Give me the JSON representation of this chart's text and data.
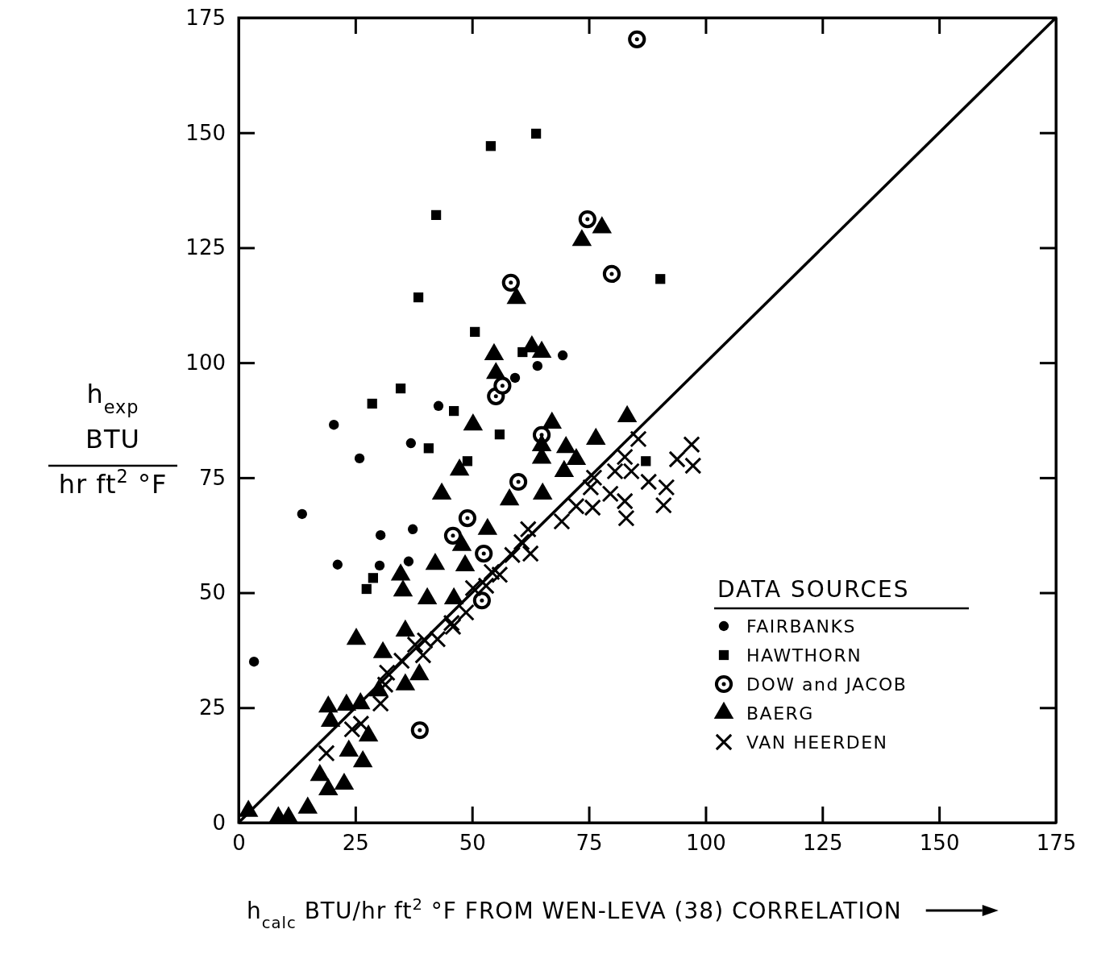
{
  "chart_data": {
    "type": "scatter",
    "xlabel": "h$_{calc}$ BTU/hr ft$^{2}$ °F   FROM WEN-LEVA (38) CORRELATION",
    "ylabel": "h$_{exp}$\nBTU\nhr ft$^{2}$ °F",
    "legend_title": "DATA SOURCES",
    "legend": "bottom right",
    "grid": false,
    "tick_labels": "xy",
    "xlim": [
      0,
      175
    ],
    "ylim": [
      0,
      175
    ],
    "xticks": [
      0,
      25,
      50,
      75,
      100,
      125,
      150,
      175
    ],
    "yticks": [
      0,
      25,
      50,
      75,
      100,
      125,
      150,
      175
    ],
    "series": [
      {
        "name": "FAIRBANKS",
        "color": "#000000",
        "marker": "circle",
        "x": [
          3.3,
          20.4,
          25.9,
          13.6,
          21.2,
          30.4,
          30.2,
          36.4,
          37.3,
          36.9,
          42.8,
          59.2,
          64,
          69.4
        ],
        "values": [
          35,
          86.5,
          79.2,
          67.1,
          56.1,
          62.5,
          55.9,
          56.8,
          63.8,
          82.5,
          90.6,
          96.7,
          99.3,
          101.6
        ]
      },
      {
        "name": "HAWTHORN",
        "color": "#000000",
        "marker": "square",
        "x": [
          63.7,
          54,
          42.3,
          38.5,
          90.3,
          50.6,
          34.7,
          28.6,
          46.1,
          40.7,
          49,
          55.9,
          28.8,
          27.4,
          87.2,
          60.8
        ],
        "values": [
          149.8,
          147.1,
          132.1,
          114.2,
          118.2,
          106.7,
          94.4,
          91.1,
          89.5,
          81.4,
          78.6,
          84.4,
          53.2,
          50.8,
          78.6,
          102.3
        ]
      },
      {
        "name": "DOW and JACOB",
        "color": "#000000",
        "marker": "circle",
        "x": [
          85.3,
          74.7,
          79.9,
          58.3,
          55.1,
          56.5,
          64.9,
          38.8,
          52.1,
          49,
          45.9,
          52.5,
          59.9
        ],
        "values": [
          170.3,
          131.2,
          119.3,
          117.4,
          92.7,
          95,
          84.3,
          20.1,
          48.3,
          66.2,
          62.4,
          58.5,
          74.1
        ]
      },
      {
        "name": "BAERG",
        "color": "#000000",
        "marker": "triangle",
        "x": [
          77.8,
          73.5,
          59.5,
          54.7,
          55.1,
          62.8,
          64.9,
          50.2,
          67.1,
          64.9,
          64.9,
          70.1,
          72.3,
          69.7,
          76.5,
          83.2,
          43.5,
          58,
          65.1,
          53.3,
          47.8,
          42.1,
          48.5,
          34.7,
          35.2,
          40.4,
          46.1,
          47.3,
          25.2,
          30.9,
          35.7,
          19.2,
          23.1,
          26.1,
          19.7,
          27.8,
          23.6,
          26.6,
          17.4,
          19.2,
          22.6,
          14.8,
          8.5,
          10.7,
          2.1,
          38.7,
          35.7,
          30
        ],
        "values": [
          129.4,
          126.6,
          114,
          101.8,
          97.7,
          103.5,
          102.3,
          86.5,
          86.9,
          82,
          79.3,
          81.6,
          79,
          76.4,
          83.4,
          88.3,
          71.5,
          70.2,
          71.5,
          63.8,
          60.3,
          56.2,
          55.9,
          53.9,
          50.4,
          48.7,
          48.7,
          76.7,
          39.9,
          37,
          41.7,
          25.2,
          25.6,
          25.9,
          22.1,
          18.9,
          15.6,
          13.3,
          10.3,
          7.2,
          8.4,
          3.2,
          1.1,
          1.1,
          2.5,
          32.2,
          30,
          28.7
        ]
      },
      {
        "name": "VAN HEERDEN",
        "color": "#000000",
        "marker": "cross",
        "x": [
          85.6,
          97,
          93.9,
          97.3,
          82.7,
          80.6,
          84.1,
          87.8,
          91.6,
          91,
          82.7,
          83,
          79.6,
          76.1,
          75.4,
          75.8,
          72.3,
          69.2,
          62,
          60.6,
          62.5,
          58.6,
          55.9,
          54.2,
          53,
          50.2,
          48.7,
          45.6,
          45.9,
          42.6,
          39.9,
          39.5,
          34.9,
          31.8,
          31.4,
          30.4,
          26.2,
          24.3,
          18.8,
          37.8
        ],
        "values": [
          83.4,
          82.2,
          79,
          77.6,
          79.5,
          76.4,
          76.4,
          74.1,
          72.9,
          69,
          69.9,
          66.2,
          71.5,
          75,
          72.9,
          68.5,
          68.8,
          65.5,
          63.8,
          61,
          58.5,
          58.2,
          53.9,
          54.5,
          51.5,
          51,
          45.7,
          43.4,
          42.6,
          39.9,
          39.6,
          36.4,
          35.2,
          32.6,
          30,
          25.9,
          21.5,
          20.3,
          15.1,
          38.7
        ]
      },
      {
        "type": "line",
        "color": "#000000",
        "line_style": "solid",
        "x": [
          0,
          175
        ],
        "values": [
          0,
          175
        ]
      }
    ]
  }
}
